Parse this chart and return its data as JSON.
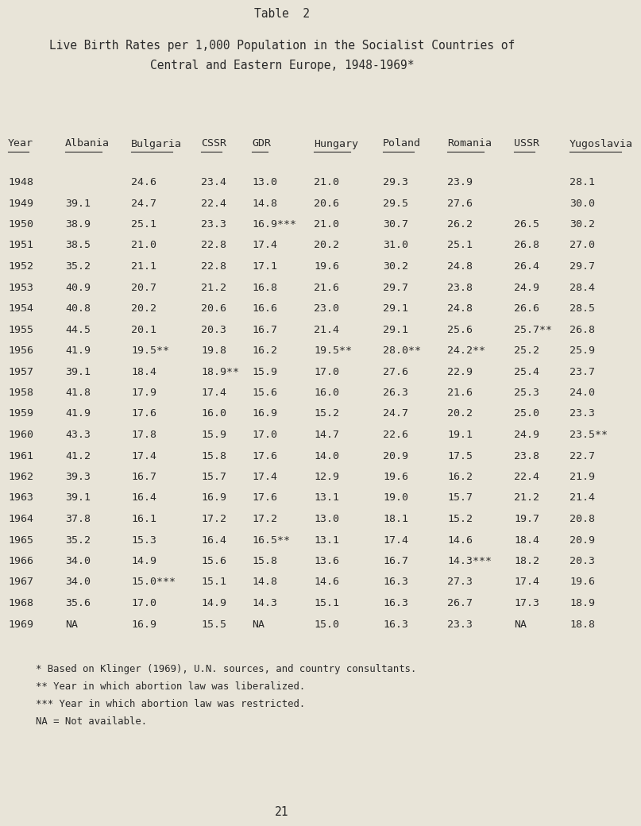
{
  "table_label": "Table  2",
  "title_line1": "Live Birth Rates per 1,000 Population in the Socialist Countries of",
  "title_line2": "Central and Eastern Europe, 1948-1969*",
  "columns": [
    "Year",
    "Albania",
    "Bulgaria",
    "CSSR",
    "GDR",
    "Hungary",
    "Poland",
    "Romania",
    "USSR",
    "Yugoslavia"
  ],
  "rows": [
    [
      "1948",
      "",
      "24.6",
      "23.4",
      "13.0",
      "21.0",
      "29.3",
      "23.9",
      "",
      "28.1"
    ],
    [
      "1949",
      "39.1",
      "24.7",
      "22.4",
      "14.8",
      "20.6",
      "29.5",
      "27.6",
      "",
      "30.0"
    ],
    [
      "1950",
      "38.9",
      "25.1",
      "23.3",
      "16.9***",
      "21.0",
      "30.7",
      "26.2",
      "26.5",
      "30.2"
    ],
    [
      "1951",
      "38.5",
      "21.0",
      "22.8",
      "17.4",
      "20.2",
      "31.0",
      "25.1",
      "26.8",
      "27.0"
    ],
    [
      "1952",
      "35.2",
      "21.1",
      "22.8",
      "17.1",
      "19.6",
      "30.2",
      "24.8",
      "26.4",
      "29.7"
    ],
    [
      "1953",
      "40.9",
      "20.7",
      "21.2",
      "16.8",
      "21.6",
      "29.7",
      "23.8",
      "24.9",
      "28.4"
    ],
    [
      "1954",
      "40.8",
      "20.2",
      "20.6",
      "16.6",
      "23.0",
      "29.1",
      "24.8",
      "26.6",
      "28.5"
    ],
    [
      "1955",
      "44.5",
      "20.1",
      "20.3",
      "16.7",
      "21.4",
      "29.1",
      "25.6",
      "25.7**",
      "26.8"
    ],
    [
      "1956",
      "41.9",
      "19.5**",
      "19.8",
      "16.2",
      "19.5**",
      "28.0**",
      "24.2**",
      "25.2",
      "25.9"
    ],
    [
      "1957",
      "39.1",
      "18.4",
      "18.9**",
      "15.9",
      "17.0",
      "27.6",
      "22.9",
      "25.4",
      "23.7"
    ],
    [
      "1958",
      "41.8",
      "17.9",
      "17.4",
      "15.6",
      "16.0",
      "26.3",
      "21.6",
      "25.3",
      "24.0"
    ],
    [
      "1959",
      "41.9",
      "17.6",
      "16.0",
      "16.9",
      "15.2",
      "24.7",
      "20.2",
      "25.0",
      "23.3"
    ],
    [
      "1960",
      "43.3",
      "17.8",
      "15.9",
      "17.0",
      "14.7",
      "22.6",
      "19.1",
      "24.9",
      "23.5**"
    ],
    [
      "1961",
      "41.2",
      "17.4",
      "15.8",
      "17.6",
      "14.0",
      "20.9",
      "17.5",
      "23.8",
      "22.7"
    ],
    [
      "1962",
      "39.3",
      "16.7",
      "15.7",
      "17.4",
      "12.9",
      "19.6",
      "16.2",
      "22.4",
      "21.9"
    ],
    [
      "1963",
      "39.1",
      "16.4",
      "16.9",
      "17.6",
      "13.1",
      "19.0",
      "15.7",
      "21.2",
      "21.4"
    ],
    [
      "1964",
      "37.8",
      "16.1",
      "17.2",
      "17.2",
      "13.0",
      "18.1",
      "15.2",
      "19.7",
      "20.8"
    ],
    [
      "1965",
      "35.2",
      "15.3",
      "16.4",
      "16.5**",
      "13.1",
      "17.4",
      "14.6",
      "18.4",
      "20.9"
    ],
    [
      "1966",
      "34.0",
      "14.9",
      "15.6",
      "15.8",
      "13.6",
      "16.7",
      "14.3***",
      "18.2",
      "20.3"
    ],
    [
      "1967",
      "34.0",
      "15.0***",
      "15.1",
      "14.8",
      "14.6",
      "16.3",
      "27.3",
      "17.4",
      "19.6"
    ],
    [
      "1968",
      "35.6",
      "17.0",
      "14.9",
      "14.3",
      "15.1",
      "16.3",
      "26.7",
      "17.3",
      "18.9"
    ],
    [
      "1969",
      "NA",
      "16.9",
      "15.5",
      "NA",
      "15.0",
      "16.3",
      "23.3",
      "NA",
      "18.8"
    ]
  ],
  "footnotes": [
    "* Based on Klinger (1969), U.N. sources, and country consultants.",
    "** Year in which abortion law was liberalized.",
    "*** Year in which abortion law was restricted.",
    "NA = Not available."
  ],
  "page_number": "21",
  "bg_color": "#e8e4d8",
  "text_color": "#2a2a2a"
}
